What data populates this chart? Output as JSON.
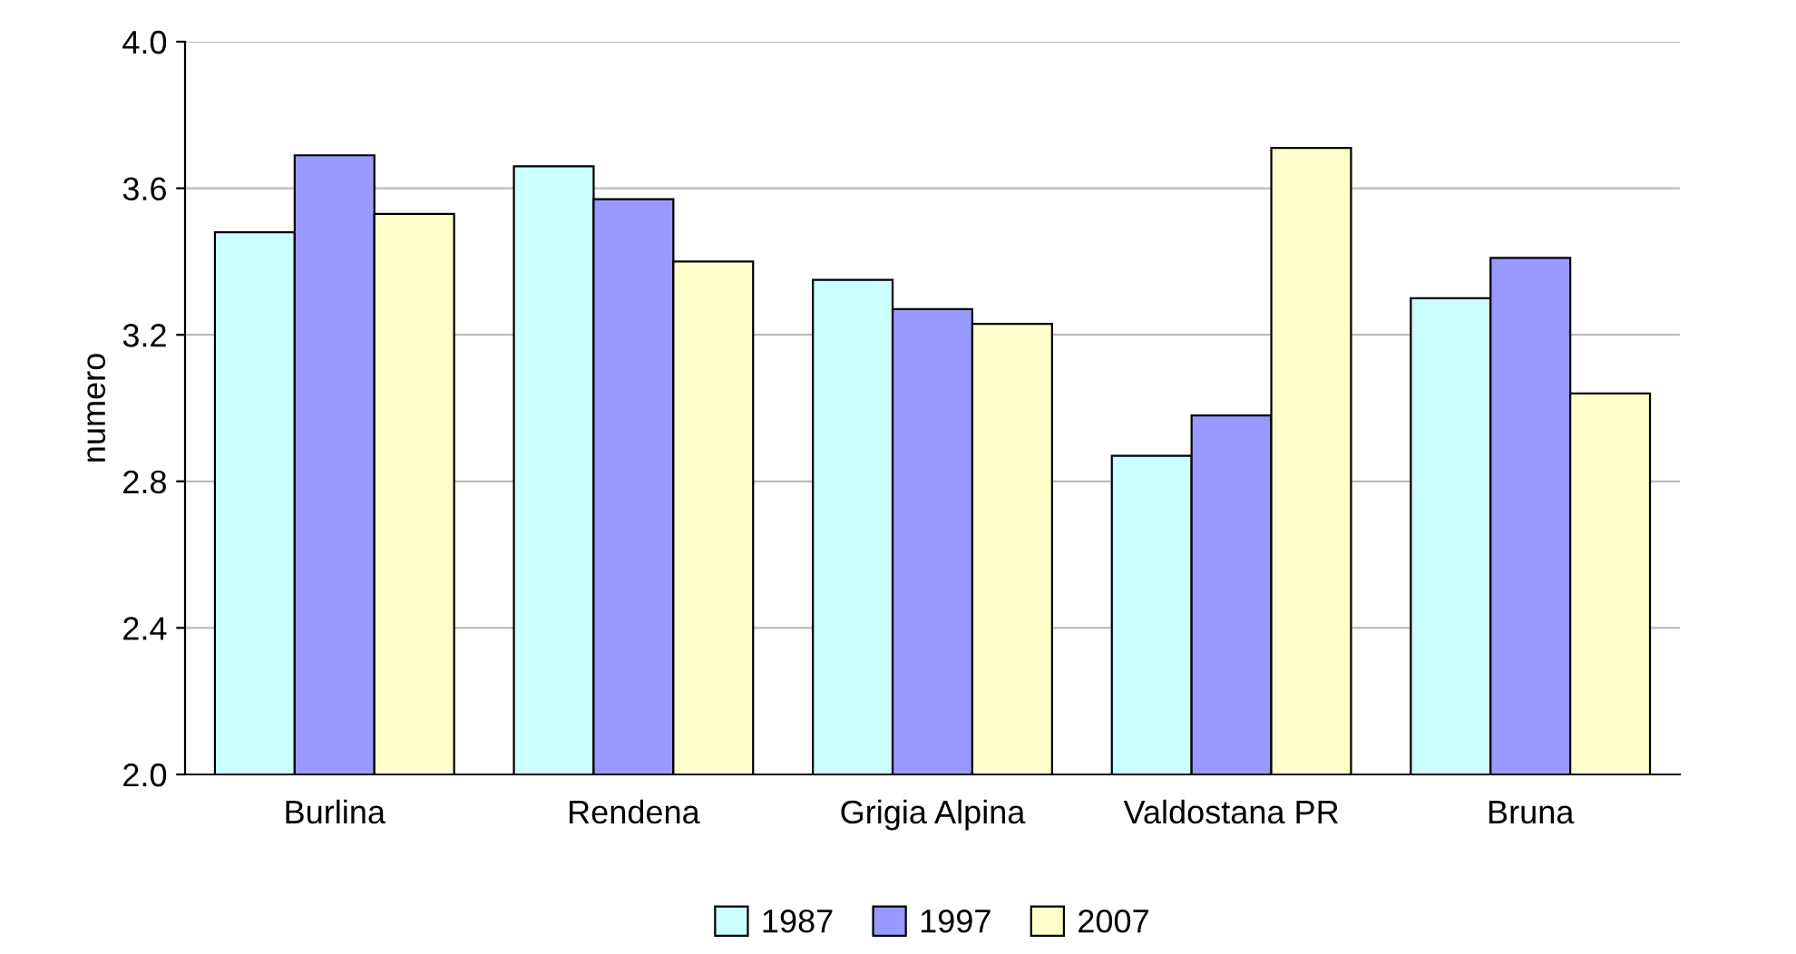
{
  "chart_data": {
    "type": "bar",
    "ylabel": "numero",
    "categories": [
      "Burlina",
      "Rendena",
      "Grigia Alpina",
      "Valdostana PR",
      "Bruna"
    ],
    "series": [
      {
        "name": "1987",
        "color": "#ccffff",
        "values": [
          3.48,
          3.66,
          3.35,
          2.87,
          3.3
        ]
      },
      {
        "name": "1997",
        "color": "#9999ff",
        "values": [
          3.69,
          3.57,
          3.27,
          2.98,
          3.41
        ]
      },
      {
        "name": "2007",
        "color": "#ffffcc",
        "values": [
          3.53,
          3.4,
          3.23,
          3.71,
          3.04
        ]
      }
    ],
    "ylim": [
      2.0,
      4.0
    ],
    "yticks": [
      {
        "value": 2.0,
        "label": "2.0"
      },
      {
        "value": 2.4,
        "label": "2.4"
      },
      {
        "value": 2.8,
        "label": "2.8"
      },
      {
        "value": 3.2,
        "label": "3.2"
      },
      {
        "value": 3.6,
        "label": "3.6"
      },
      {
        "value": 4.0,
        "label": "4.0"
      }
    ],
    "grid": "y",
    "legend": "bottom"
  }
}
